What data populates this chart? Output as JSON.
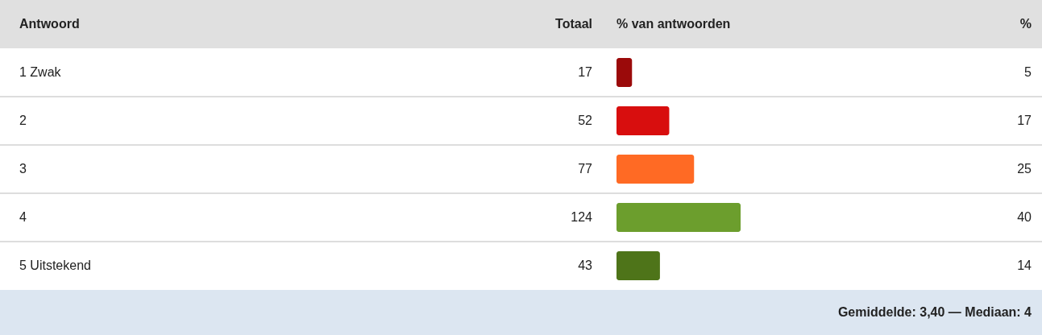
{
  "chart_data": {
    "type": "bar",
    "orientation": "horizontal",
    "ylabel": "Antwoord",
    "xlabel": "% van antwoorden",
    "categories": [
      "1 Zwak",
      "2",
      "3",
      "4",
      "5 Uitstekend"
    ],
    "values": [
      5,
      17,
      25,
      40,
      14
    ],
    "colors": [
      "#9b0a0a",
      "#d80e0e",
      "#ff6a24",
      "#6c9e2d",
      "#4e7419"
    ],
    "data_labels": true,
    "annotations": [
      "Totaal",
      "%",
      "17",
      "52",
      "77",
      "124",
      "43",
      "Gemiddelde: 3,40 — Mediaan: 4"
    ]
  }
}
